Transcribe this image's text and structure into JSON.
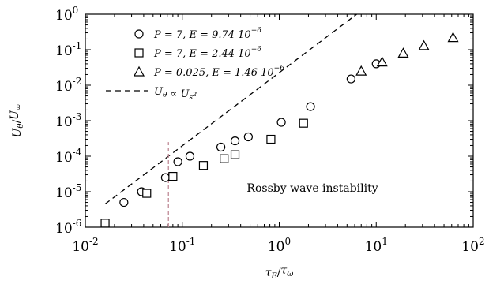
{
  "chart_data": {
    "type": "scatter",
    "xlabel": "τ_E/τ_ω",
    "ylabel": "U_θ/U_∞",
    "xscale": "log",
    "yscale": "log",
    "xlim": [
      0.01,
      100
    ],
    "ylim": [
      1e-06,
      1
    ],
    "grid": false,
    "legend_position": "top-left",
    "x_ticks": [
      {
        "value": 0.01,
        "base": "10",
        "exp": "-2"
      },
      {
        "value": 0.1,
        "base": "10",
        "exp": "-1"
      },
      {
        "value": 1,
        "base": "10",
        "exp": "0"
      },
      {
        "value": 10,
        "base": "10",
        "exp": "1"
      },
      {
        "value": 100,
        "base": "10",
        "exp": "2"
      }
    ],
    "y_ticks": [
      {
        "value": 1e-06,
        "base": "10",
        "exp": "-6"
      },
      {
        "value": 1e-05,
        "base": "10",
        "exp": "-5"
      },
      {
        "value": 0.0001,
        "base": "10",
        "exp": "-4"
      },
      {
        "value": 0.001,
        "base": "10",
        "exp": "-3"
      },
      {
        "value": 0.01,
        "base": "10",
        "exp": "-2"
      },
      {
        "value": 0.1,
        "base": "10",
        "exp": "-1"
      },
      {
        "value": 1,
        "base": "10",
        "exp": "0"
      }
    ],
    "series": [
      {
        "name": "P = 7, E = 9.74 10^-6",
        "marker": "circle",
        "points": [
          [
            0.025,
            5e-06
          ],
          [
            0.038,
            1e-05
          ],
          [
            0.067,
            2.5e-05
          ],
          [
            0.09,
            7e-05
          ],
          [
            0.12,
            0.0001
          ],
          [
            0.25,
            0.00018
          ],
          [
            0.35,
            0.00027
          ],
          [
            0.48,
            0.00035
          ],
          [
            1.05,
            0.0009
          ],
          [
            2.1,
            0.0025
          ],
          [
            5.5,
            0.015
          ],
          [
            10.0,
            0.04
          ]
        ]
      },
      {
        "name": "P = 7, E = 2.44 10^-6",
        "marker": "square",
        "points": [
          [
            0.016,
            1.3e-06
          ],
          [
            0.043,
            9e-06
          ],
          [
            0.08,
            2.7e-05
          ],
          [
            0.165,
            5.5e-05
          ],
          [
            0.27,
            8.5e-05
          ],
          [
            0.35,
            0.00011
          ],
          [
            0.82,
            0.0003
          ],
          [
            1.78,
            0.00085
          ]
        ]
      },
      {
        "name": "P = 0.025, E = 1.46 10^-6",
        "marker": "triangle",
        "points": [
          [
            7.0,
            0.025
          ],
          [
            11.5,
            0.045
          ],
          [
            19.0,
            0.08
          ],
          [
            31.0,
            0.13
          ],
          [
            62.0,
            0.22
          ]
        ]
      }
    ],
    "reference_line": {
      "name": "U_θ ∝ U_s²",
      "style": "dashed",
      "from": [
        0.016,
        4.5e-06
      ],
      "to": [
        6.3,
        1.0
      ]
    },
    "threshold_line": {
      "x": 0.072,
      "y_from": 1e-06,
      "y_to": 0.00025,
      "color": "#c08a96"
    },
    "annotation": {
      "text": "Rossby wave instability",
      "x": 2.2,
      "y": 1e-05
    },
    "legend_entries": [
      {
        "marker": "circle",
        "prefix": "P = 7, E = 9.74 10",
        "exp": "−6"
      },
      {
        "marker": "square",
        "prefix": "P = 7, E = 2.44 10",
        "exp": "−6"
      },
      {
        "marker": "triangle",
        "prefix": "P = 0.025, E = 1.46 10",
        "exp": "−6"
      },
      {
        "marker": "dash",
        "prefix": "U_θ ∝ U_s²",
        "exp": ""
      }
    ]
  }
}
